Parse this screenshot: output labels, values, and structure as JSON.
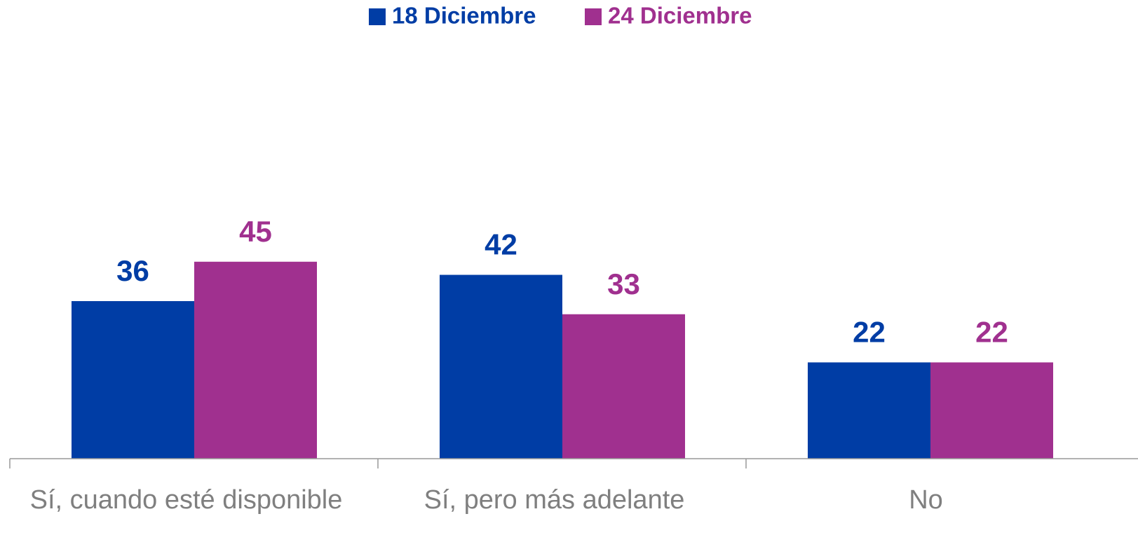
{
  "chart_data": {
    "type": "bar",
    "categories": [
      "Sí, cuando esté disponible",
      "Sí, pero más adelante",
      "No"
    ],
    "series": [
      {
        "name": "18 Diciembre",
        "color": "#003da5",
        "values": [
          36,
          42,
          22
        ]
      },
      {
        "name": "24 Diciembre",
        "color": "#a0308f",
        "values": [
          45,
          33,
          22
        ]
      }
    ],
    "ylim": [
      0,
      100
    ],
    "legend": "top"
  }
}
